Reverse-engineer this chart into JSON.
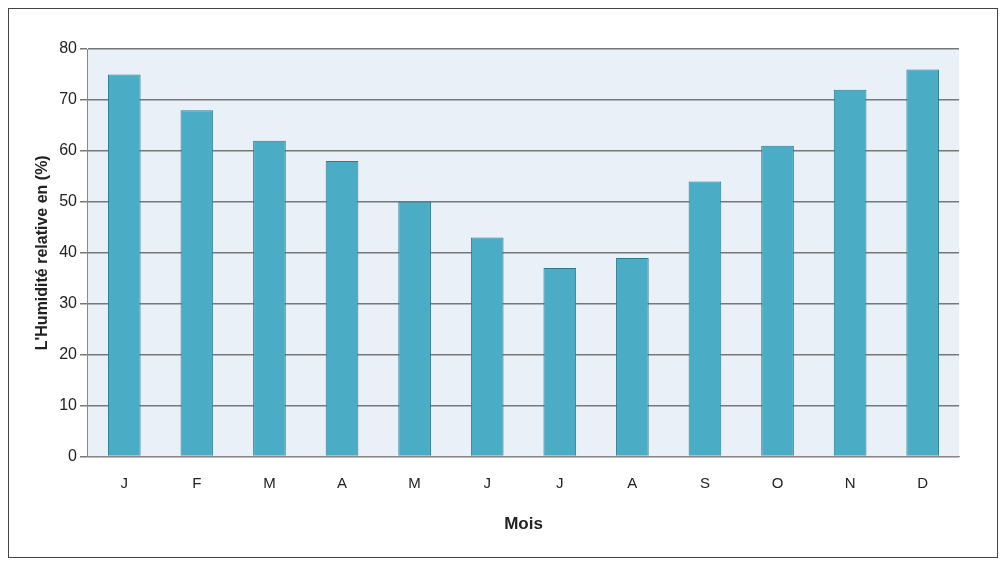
{
  "chart_data": {
    "type": "bar",
    "xlabel": "Mois",
    "ylabel": "L'Humidité relative en (%)",
    "categories": [
      "J",
      "F",
      "M",
      "A",
      "M",
      "J",
      "J",
      "A",
      "S",
      "O",
      "N",
      "D"
    ],
    "values": [
      75,
      68,
      62,
      58,
      50,
      43,
      37,
      39,
      54,
      61,
      72,
      76
    ],
    "color": "#4bacc6",
    "ylim": [
      0,
      80
    ],
    "yticks": [
      0,
      10,
      20,
      30,
      40,
      50,
      60,
      70,
      80
    ],
    "grid": "y",
    "legend": false
  }
}
